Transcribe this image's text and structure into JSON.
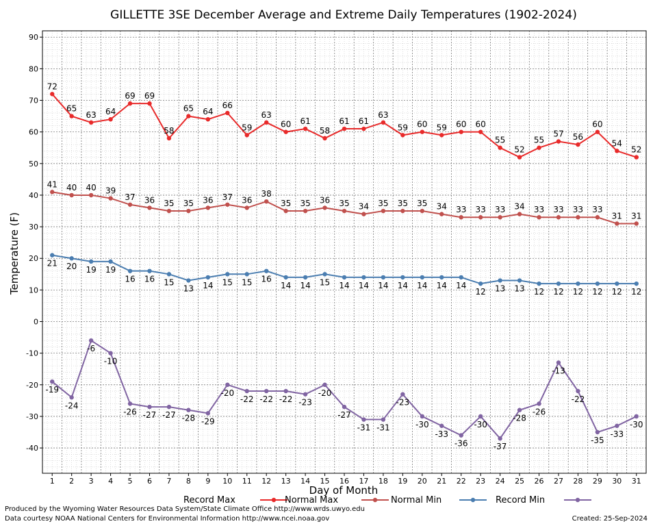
{
  "chart_data": {
    "type": "line",
    "title": "GILLETTE 3SE December Average and Extreme Daily Temperatures (1902-2024)",
    "xlabel": "Day of Month",
    "ylabel": "Temperature (F)",
    "ylim": [
      -48,
      92
    ],
    "yticks": [
      90,
      80,
      70,
      60,
      50,
      40,
      30,
      20,
      10,
      0,
      -10,
      -20,
      -30,
      -40
    ],
    "x": [
      1,
      2,
      3,
      4,
      5,
      6,
      7,
      8,
      9,
      10,
      11,
      12,
      13,
      14,
      15,
      16,
      17,
      18,
      19,
      20,
      21,
      22,
      23,
      24,
      25,
      26,
      27,
      28,
      29,
      30,
      31
    ],
    "grid": true,
    "legend_position": "bottom",
    "series": [
      {
        "name": "Record Max",
        "color": "#e82a2a",
        "label_side": "above",
        "values": [
          72,
          65,
          63,
          64,
          69,
          69,
          58,
          65,
          64,
          66,
          59,
          63,
          60,
          61,
          58,
          61,
          61,
          63,
          59,
          60,
          59,
          60,
          60,
          55,
          52,
          55,
          57,
          56,
          60,
          54,
          52
        ]
      },
      {
        "name": "Normal Max",
        "color": "#c0504d",
        "label_side": "above",
        "values": [
          41,
          40,
          40,
          39,
          37,
          36,
          35,
          35,
          36,
          37,
          36,
          38,
          35,
          35,
          36,
          35,
          34,
          35,
          35,
          35,
          34,
          33,
          33,
          33,
          34,
          33,
          33,
          33,
          33,
          31,
          31
        ]
      },
      {
        "name": "Normal Min",
        "color": "#4a7db0",
        "label_side": "below",
        "values": [
          21,
          20,
          19,
          19,
          16,
          16,
          15,
          13,
          14,
          15,
          15,
          16,
          14,
          14,
          15,
          14,
          14,
          14,
          14,
          14,
          14,
          14,
          12,
          13,
          13,
          12,
          12,
          12,
          12,
          12,
          12
        ]
      },
      {
        "name": "Record Min",
        "color": "#8064a2",
        "label_side": "below",
        "values": [
          -19,
          -24,
          -6,
          -10,
          -26,
          -27,
          -27,
          -28,
          -29,
          -20,
          -22,
          -22,
          -22,
          -23,
          -20,
          -27,
          -31,
          -31,
          -23,
          -30,
          -33,
          -36,
          -30,
          -37,
          -28,
          -26,
          -13,
          -22,
          -35,
          -33,
          -30
        ]
      }
    ]
  },
  "footer": {
    "produced_by": "Produced by the Wyoming Water Resources Data System/State Climate Office http://www.wrds.uwyo.edu",
    "courtesy": "Data courtesy NOAA National Centers for Environmental Information http://www.ncei.noaa.gov",
    "created": "Created:  25-Sep-2024"
  }
}
